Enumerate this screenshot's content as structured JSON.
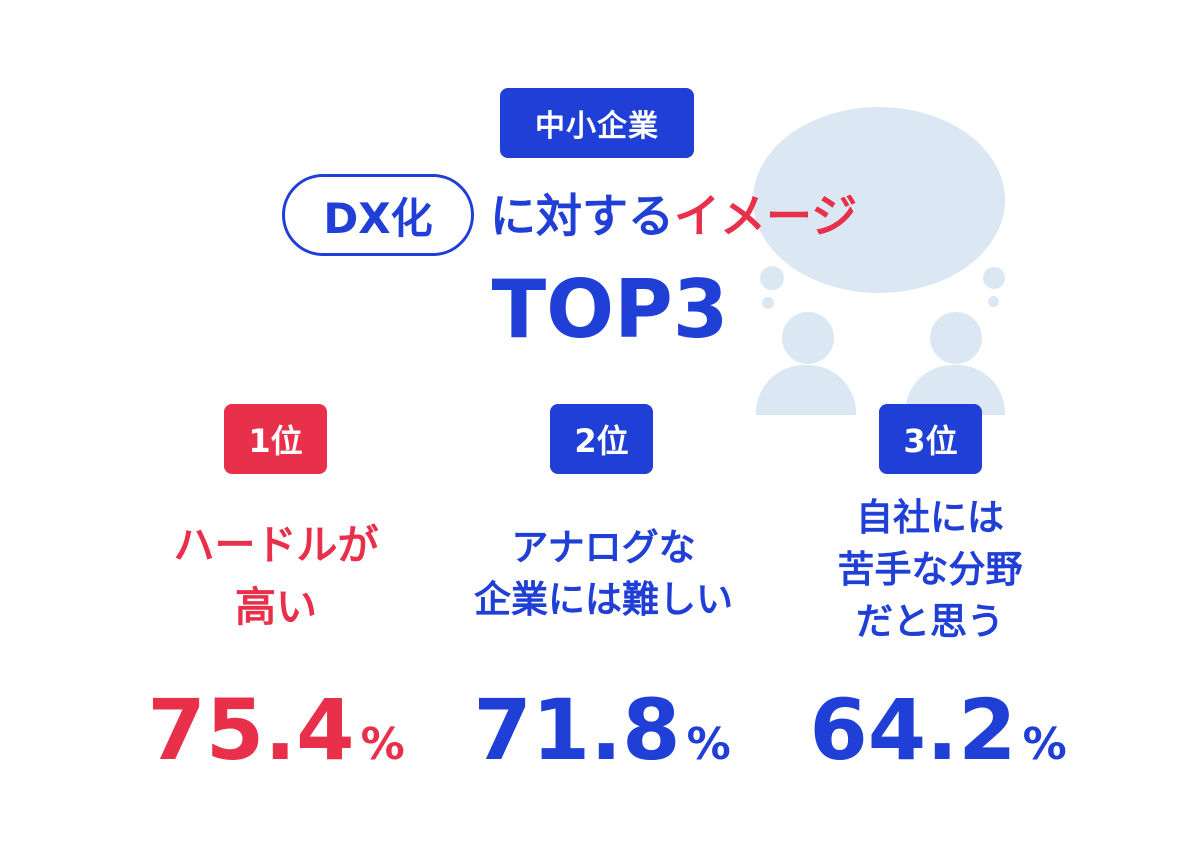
{
  "header": {
    "segment": "中小企業",
    "keyword": "DX化",
    "title_middle": "に対する",
    "title_highlight": "イメージ",
    "subtitle": "TOP3"
  },
  "colors": {
    "primary": "#1f3fd6",
    "accent": "#e8304a",
    "illustration": "#dbe7f2"
  },
  "illustration": {
    "icon": "two-people-speech-bubble-icon"
  },
  "ranks": [
    {
      "badge": "1位",
      "label_lines": [
        "ハードルが",
        "高い"
      ],
      "value": "75.4",
      "unit": "%",
      "color": "#e8304a"
    },
    {
      "badge": "2位",
      "label_lines": [
        "アナログな",
        "企業には難しい"
      ],
      "value": "71.8",
      "unit": "%",
      "color": "#1f3fd6"
    },
    {
      "badge": "3位",
      "label_lines": [
        "自社には",
        "苦手な分野",
        "だと思う"
      ],
      "value": "64.2",
      "unit": "%",
      "color": "#1f3fd6"
    }
  ]
}
